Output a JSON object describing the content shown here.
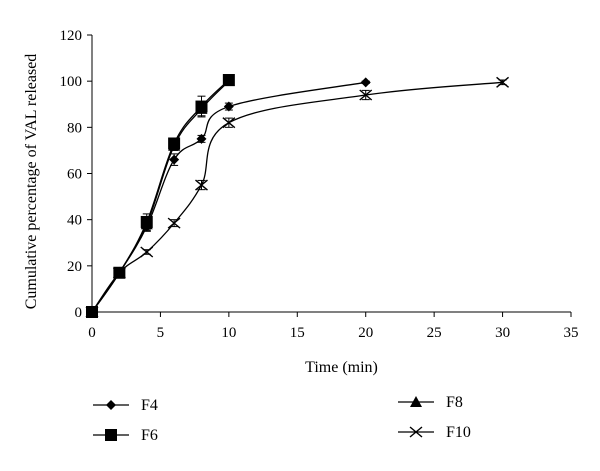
{
  "chart_data": {
    "type": "line",
    "title": "",
    "xlabel": "Time (min)",
    "ylabel": "Cumulative percentage of VAL released",
    "xlim": [
      0,
      35
    ],
    "ylim": [
      0,
      120
    ],
    "xticks": [
      "0",
      "5",
      "10",
      "15",
      "20",
      "25",
      "30",
      "35"
    ],
    "yticks": [
      "0",
      "20",
      "40",
      "60",
      "80",
      "100",
      "120"
    ],
    "grid": false,
    "legend_placement": "bottom",
    "series": [
      {
        "name": "F4",
        "marker": "diamond",
        "color": "#000000",
        "x": [
          0,
          2,
          4,
          6,
          8,
          10,
          20
        ],
        "y": [
          0,
          17,
          37,
          66,
          75,
          89,
          99.5
        ],
        "err": [
          0,
          1,
          2,
          2.5,
          1.5,
          1.5,
          0.5
        ]
      },
      {
        "name": "F6",
        "marker": "square",
        "color": "#000000",
        "x": [
          0,
          2,
          4,
          6,
          8,
          10
        ],
        "y": [
          0,
          17,
          39,
          73,
          89,
          100.5
        ],
        "err": [
          0,
          1,
          3.5,
          2,
          4.5,
          1
        ]
      },
      {
        "name": "F8",
        "marker": "triangle",
        "color": "#000000",
        "x": [
          0,
          2,
          4,
          6,
          8,
          10
        ],
        "y": [
          0,
          17,
          38,
          72,
          88,
          100
        ],
        "err": [
          0,
          1,
          3,
          2,
          3,
          1
        ]
      },
      {
        "name": "F10",
        "marker": "x",
        "color": "#000000",
        "x": [
          0,
          2,
          4,
          6,
          8,
          10,
          20,
          30
        ],
        "y": [
          0,
          17,
          26,
          38.5,
          55,
          82,
          94,
          99.5
        ],
        "err": [
          0,
          1,
          1,
          1.5,
          2,
          2,
          2,
          1
        ]
      }
    ]
  }
}
